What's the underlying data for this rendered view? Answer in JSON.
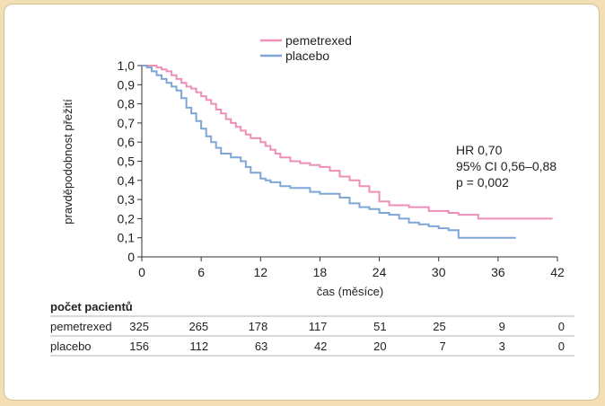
{
  "chart_data": {
    "type": "line",
    "step": true,
    "xlabel": "čas (měsíce)",
    "ylabel": "pravděpodobnost přežití",
    "xlim": [
      0,
      42
    ],
    "ylim": [
      0,
      1.0
    ],
    "xticks": [
      0,
      6,
      12,
      18,
      24,
      30,
      36,
      42
    ],
    "yticks": [
      "0",
      "0,1",
      "0,2",
      "0,3",
      "0,4",
      "0,5",
      "0,6",
      "0,7",
      "0,8",
      "0,9",
      "1,0"
    ],
    "legend_placement": "top-center",
    "annotation": [
      "HR 0,70",
      "95% CI 0,56–0,88",
      "p = 0,002"
    ],
    "series": [
      {
        "name": "pemetrexed",
        "color": "#ee8fb8",
        "points": [
          [
            0,
            1.0
          ],
          [
            1,
            1.0
          ],
          [
            1.5,
            0.99
          ],
          [
            2,
            0.98
          ],
          [
            2.5,
            0.97
          ],
          [
            3,
            0.95
          ],
          [
            3.5,
            0.93
          ],
          [
            4,
            0.91
          ],
          [
            4.5,
            0.89
          ],
          [
            5,
            0.88
          ],
          [
            5.5,
            0.86
          ],
          [
            6,
            0.84
          ],
          [
            6.5,
            0.82
          ],
          [
            7,
            0.8
          ],
          [
            7.5,
            0.77
          ],
          [
            8,
            0.75
          ],
          [
            8.5,
            0.72
          ],
          [
            9,
            0.7
          ],
          [
            9.5,
            0.68
          ],
          [
            10,
            0.66
          ],
          [
            10.5,
            0.64
          ],
          [
            11,
            0.62
          ],
          [
            12,
            0.6
          ],
          [
            12.5,
            0.58
          ],
          [
            13,
            0.56
          ],
          [
            13.5,
            0.54
          ],
          [
            14,
            0.52
          ],
          [
            15,
            0.5
          ],
          [
            16,
            0.49
          ],
          [
            17,
            0.48
          ],
          [
            18,
            0.47
          ],
          [
            19,
            0.45
          ],
          [
            20,
            0.42
          ],
          [
            21,
            0.4
          ],
          [
            22,
            0.37
          ],
          [
            23,
            0.34
          ],
          [
            24,
            0.29
          ],
          [
            25,
            0.27
          ],
          [
            27,
            0.26
          ],
          [
            29,
            0.24
          ],
          [
            31,
            0.23
          ],
          [
            32,
            0.22
          ],
          [
            34,
            0.2
          ],
          [
            41.5,
            0.2
          ]
        ]
      },
      {
        "name": "placebo",
        "color": "#7ea6d6",
        "points": [
          [
            0,
            1.0
          ],
          [
            0.5,
            0.99
          ],
          [
            1,
            0.97
          ],
          [
            1.5,
            0.95
          ],
          [
            2,
            0.93
          ],
          [
            2.5,
            0.91
          ],
          [
            3,
            0.89
          ],
          [
            3.5,
            0.87
          ],
          [
            4,
            0.83
          ],
          [
            4.5,
            0.78
          ],
          [
            5,
            0.75
          ],
          [
            5.5,
            0.71
          ],
          [
            6,
            0.67
          ],
          [
            6.5,
            0.63
          ],
          [
            7,
            0.6
          ],
          [
            7.5,
            0.57
          ],
          [
            8,
            0.54
          ],
          [
            9,
            0.52
          ],
          [
            10,
            0.5
          ],
          [
            10.5,
            0.47
          ],
          [
            11,
            0.44
          ],
          [
            12,
            0.41
          ],
          [
            12.5,
            0.4
          ],
          [
            13,
            0.39
          ],
          [
            14,
            0.37
          ],
          [
            15,
            0.36
          ],
          [
            17,
            0.34
          ],
          [
            18,
            0.33
          ],
          [
            20,
            0.31
          ],
          [
            21,
            0.28
          ],
          [
            22,
            0.26
          ],
          [
            23,
            0.25
          ],
          [
            24,
            0.23
          ],
          [
            25,
            0.22
          ],
          [
            26,
            0.2
          ],
          [
            27,
            0.18
          ],
          [
            28,
            0.17
          ],
          [
            29,
            0.16
          ],
          [
            30,
            0.15
          ],
          [
            31,
            0.14
          ],
          [
            32,
            0.1
          ],
          [
            37.8,
            0.1
          ]
        ]
      }
    ]
  },
  "risk_table": {
    "title": "počet pacientů",
    "rows": [
      {
        "name": "pemetrexed",
        "values": [
          "325",
          "265",
          "178",
          "117",
          "51",
          "25",
          "9",
          "0"
        ]
      },
      {
        "name": "placebo",
        "values": [
          "156",
          "112",
          "63",
          "42",
          "20",
          "7",
          "3",
          "0"
        ]
      }
    ]
  },
  "colors": {
    "frame": "#f2dfb6",
    "frame_border": "#d9c08e",
    "axis": "#333333",
    "divider": "#9a9a9a"
  }
}
